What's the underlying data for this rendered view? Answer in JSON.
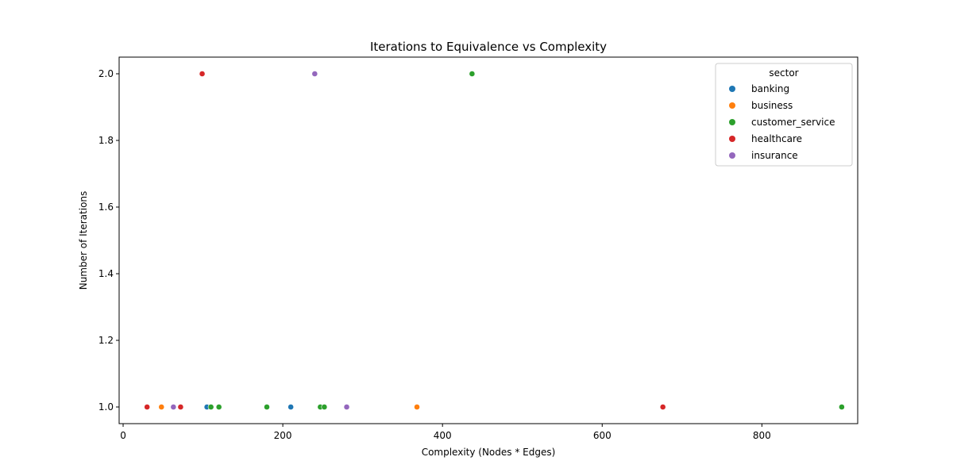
{
  "chart_data": {
    "type": "scatter",
    "title": "Iterations to Equivalence vs Complexity",
    "xlabel": "Complexity (Nodes * Edges)",
    "ylabel": "Number of Iterations",
    "xlim": [
      -5,
      920
    ],
    "ylim": [
      0.95,
      2.05
    ],
    "x_ticks": [
      0,
      200,
      400,
      600,
      800
    ],
    "y_ticks": [
      1.0,
      1.2,
      1.4,
      1.6,
      1.8,
      2.0
    ],
    "x_tick_labels": [
      "0",
      "200",
      "400",
      "600",
      "800"
    ],
    "y_tick_labels": [
      "1.0",
      "1.2",
      "1.4",
      "1.6",
      "1.8",
      "2.0"
    ],
    "grid": false,
    "legend": {
      "title": "sector",
      "placement": "top-right"
    },
    "series": [
      {
        "name": "banking",
        "color": "#1f77b4",
        "points": [
          [
            105,
            1.0
          ],
          [
            210,
            1.0
          ]
        ]
      },
      {
        "name": "business",
        "color": "#ff7f0e",
        "points": [
          [
            48,
            1.0
          ],
          [
            368,
            1.0
          ]
        ]
      },
      {
        "name": "customer_service",
        "color": "#2ca02c",
        "points": [
          [
            110,
            1.0
          ],
          [
            120,
            1.0
          ],
          [
            180,
            1.0
          ],
          [
            247,
            1.0
          ],
          [
            252,
            1.0
          ],
          [
            437,
            2.0
          ],
          [
            900,
            1.0
          ]
        ]
      },
      {
        "name": "healthcare",
        "color": "#d62728",
        "points": [
          [
            30,
            1.0
          ],
          [
            72,
            1.0
          ],
          [
            99,
            2.0
          ],
          [
            676,
            1.0
          ]
        ]
      },
      {
        "name": "insurance",
        "color": "#9467bd",
        "points": [
          [
            63,
            1.0
          ],
          [
            240,
            2.0
          ],
          [
            280,
            1.0
          ]
        ]
      }
    ]
  }
}
